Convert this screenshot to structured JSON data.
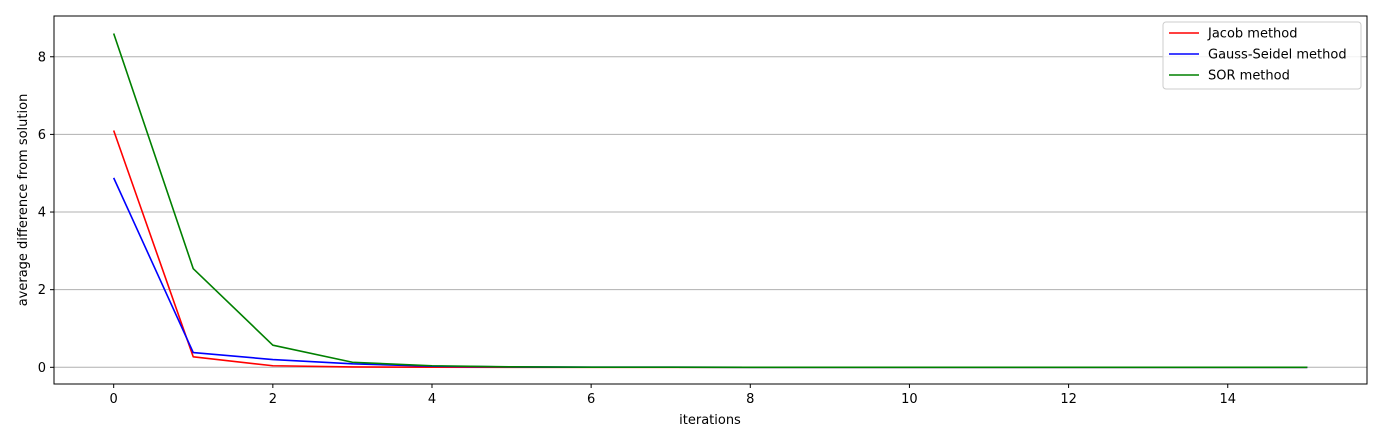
{
  "chart_data": {
    "type": "line",
    "title": "",
    "xlabel": "iterations",
    "ylabel": "average difference from solution",
    "xlim": [
      -0.75,
      15.75
    ],
    "ylim": [
      -0.43,
      9.05
    ],
    "x_ticks": [
      0,
      2,
      4,
      6,
      8,
      10,
      12,
      14
    ],
    "y_ticks": [
      0,
      2,
      4,
      6,
      8
    ],
    "grid": "horizontal",
    "legend_position": "top-right",
    "x": [
      0,
      1,
      2,
      3,
      4,
      5,
      6,
      7,
      8,
      9,
      10,
      11,
      12,
      13,
      14,
      15
    ],
    "series": [
      {
        "name": "Jacob method",
        "color": "#ff0000",
        "values": [
          6.1,
          0.27,
          0.04,
          0.01,
          0.003,
          0.001,
          0.0,
          0.0,
          0.0,
          0.0,
          0.0,
          0.0,
          0.0,
          0.0,
          0.0,
          0.0
        ]
      },
      {
        "name": "Gauss-Seidel method",
        "color": "#0000ff",
        "values": [
          4.88,
          0.38,
          0.2,
          0.09,
          0.03,
          0.01,
          0.004,
          0.002,
          0.001,
          0.0,
          0.0,
          0.0,
          0.0,
          0.0,
          0.0,
          0.0
        ]
      },
      {
        "name": "SOR method",
        "color": "#008000",
        "values": [
          8.6,
          2.54,
          0.57,
          0.13,
          0.04,
          0.012,
          0.004,
          0.002,
          0.001,
          0.0,
          0.0,
          0.0,
          0.0,
          0.0,
          0.0,
          0.0
        ]
      }
    ]
  }
}
